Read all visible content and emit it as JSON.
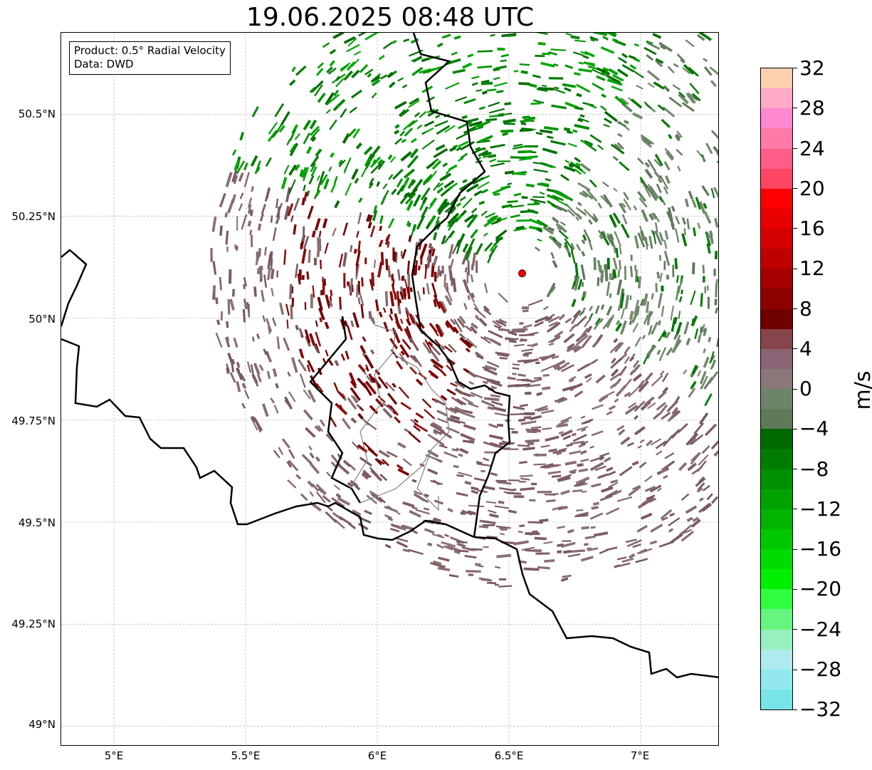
{
  "title": "19.06.2025 08:48 UTC",
  "info": {
    "product": "Product: 0.5° Radial Velocity",
    "source": "Data: DWD"
  },
  "map": {
    "lat_ticks": [
      "50.5°N",
      "50.25°N",
      "50°N",
      "49.75°N",
      "49.5°N",
      "49.25°N",
      "49°N"
    ],
    "lon_ticks": [
      "5°E",
      "5.5°E",
      "6°E",
      "6.5°E",
      "7°E"
    ],
    "extent": {
      "lon_min": 4.8,
      "lon_max": 7.3,
      "lat_min": 48.95,
      "lat_max": 50.7
    },
    "radar_site": {
      "lon": 6.55,
      "lat": 50.11,
      "color": "#ff0000"
    },
    "gridlines": true,
    "colors": {
      "border": "#000000",
      "admin_border": "#808080",
      "inbound": "#008000",
      "outbound": "#7a0000",
      "near_zero_neg": "#6b8468",
      "near_zero_pos": "#806a6e"
    }
  },
  "colorbar": {
    "label": "m/s",
    "tick_labels": [
      "32",
      "28",
      "24",
      "20",
      "16",
      "12",
      "8",
      "4",
      "0",
      "−4",
      "−8",
      "−12",
      "−16",
      "−20",
      "−24",
      "−28",
      "−32"
    ],
    "colors_top_to_bottom": [
      "#ffd0b0",
      "#ffaac8",
      "#ff88d0",
      "#ff7aa8",
      "#ff5c88",
      "#ff4464",
      "#ff0000",
      "#e80000",
      "#d40000",
      "#be0000",
      "#a40000",
      "#8c0000",
      "#6e0000",
      "#86444c",
      "#8a6474",
      "#8a7878",
      "#6e8468",
      "#5e7a58",
      "#006800",
      "#007c00",
      "#009000",
      "#00a200",
      "#00b400",
      "#00c800",
      "#00dc00",
      "#00f000",
      "#30ff40",
      "#66f680",
      "#98f0c0",
      "#aeeaee",
      "#92e8ec",
      "#78e4e8"
    ]
  }
}
